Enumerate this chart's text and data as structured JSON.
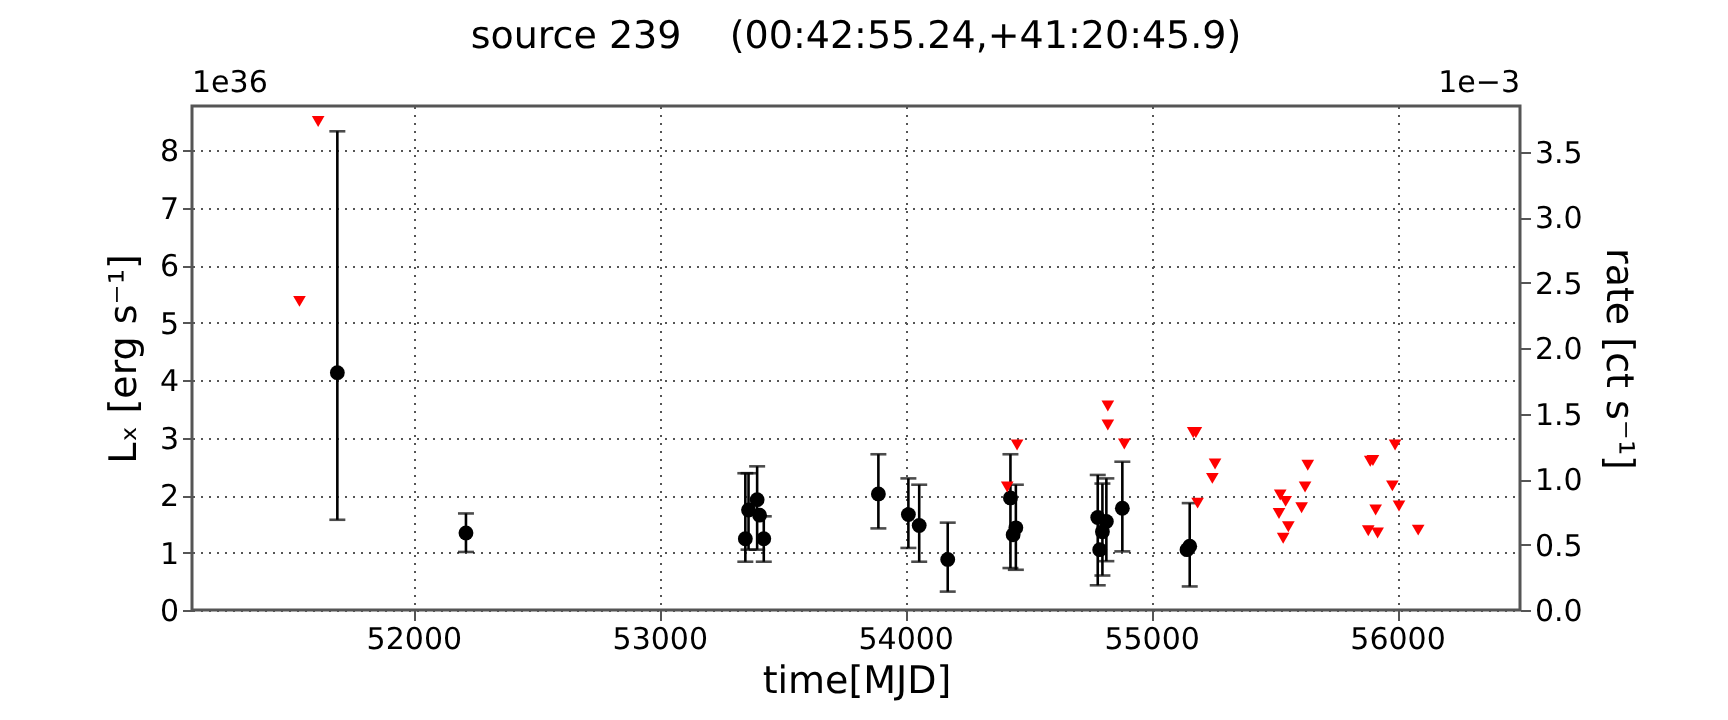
{
  "chart_data": {
    "type": "scatter",
    "title": "source 239    (00:42:55.24,+41:20:45.9)",
    "xlabel": "time[MJD]",
    "ylabel": "Lₓ [erg s⁻¹]",
    "y2label": "rate [ct s⁻¹]",
    "annotations": [
      "1e36",
      "1e−3"
    ],
    "xlim": [
      51100,
      56500
    ],
    "xticks": [
      52000,
      53000,
      54000,
      55000,
      56000
    ],
    "ylim": [
      0,
      8.77
    ],
    "yticks": [
      0,
      1,
      2,
      3,
      4,
      5,
      6,
      7,
      8
    ],
    "y2lim": [
      0,
      3.85
    ],
    "y2ticks": [
      {
        "value": 0,
        "label": "0.0"
      },
      0.5,
      {
        "value": 1,
        "label": "1.0"
      },
      1.5,
      {
        "value": 2,
        "label": "2.0"
      },
      2.5,
      {
        "value": 3,
        "label": "3.0"
      },
      3.5
    ],
    "grid": true,
    "series": [
      {
        "color": "#000000",
        "marker": "circle",
        "x": [
          51691,
          52214,
          53350,
          53363,
          53398,
          53408,
          53425,
          53891,
          54013,
          54057,
          54173,
          54428,
          54439,
          54450,
          54783,
          54791,
          54802,
          54818,
          54883,
          55146,
          55157
        ],
        "values": [
          4.13,
          1.34,
          1.24,
          1.74,
          1.92,
          1.65,
          1.24,
          2.02,
          1.66,
          1.47,
          0.88,
          1.95,
          1.31,
          1.43,
          1.61,
          1.05,
          1.36,
          1.54,
          1.77,
          1.05,
          1.11
        ],
        "errors": [
          [
            1.57,
            8.33
          ],
          [
            1.01,
            1.68
          ],
          [
            0.84,
            2.38
          ],
          [
            1.05,
            2.38
          ],
          [
            1.05,
            2.5
          ],
          null,
          [
            0.84,
            1.63
          ],
          [
            1.42,
            2.71
          ],
          [
            1.08,
            2.29
          ],
          [
            0.84,
            2.18
          ],
          [
            0.32,
            1.52
          ],
          [
            0.73,
            2.71
          ],
          null,
          [
            0.7,
            2.18
          ],
          [
            0.43,
            2.35
          ],
          null,
          [
            0.6,
            2.2
          ],
          [
            0.85,
            2.29
          ],
          [
            1.02,
            2.58
          ],
          null,
          [
            0.41,
            1.86
          ]
        ]
      },
      {
        "color": "#ff0000",
        "marker": "triangle",
        "x": [
          51537,
          51613,
          54415,
          54455,
          54824,
          54824,
          54891,
          55171,
          55182,
          55189,
          55249,
          55260,
          55520,
          55525,
          55537,
          55547,
          55558,
          55612,
          55626,
          55637,
          55883,
          55891,
          55902,
          55913,
          55921,
          55981,
          55992,
          56008,
          56086
        ],
        "values": [
          5.37,
          8.5,
          2.14,
          2.87,
          3.55,
          3.22,
          2.89,
          3.09,
          3.09,
          1.86,
          2.29,
          2.54,
          1.68,
          2.0,
          1.25,
          1.89,
          1.45,
          1.78,
          2.14,
          2.52,
          1.38,
          2.59,
          2.6,
          1.74,
          1.34,
          2.16,
          2.87,
          1.81,
          1.39
        ]
      }
    ]
  }
}
